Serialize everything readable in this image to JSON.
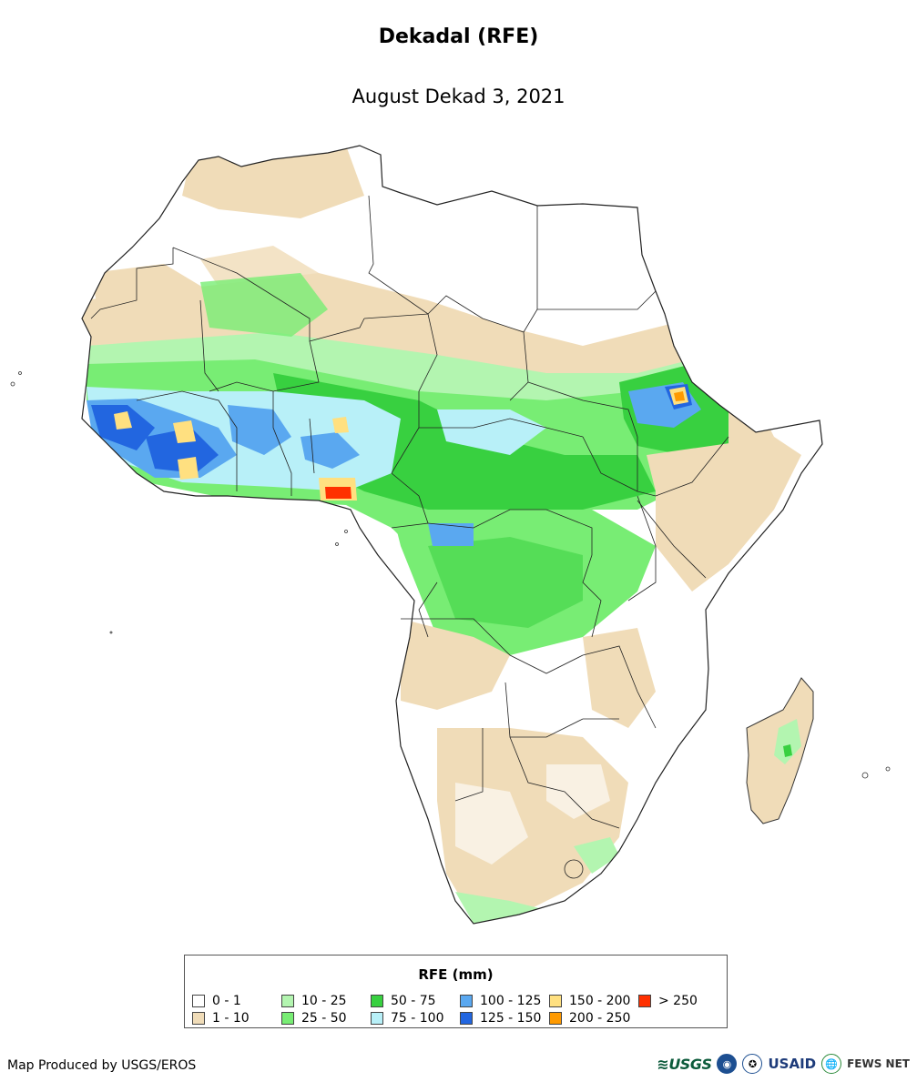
{
  "header": {
    "title": "Dekadal (RFE)",
    "subtitle": "August Dekad 3, 2021"
  },
  "legend": {
    "title": "RFE (mm)",
    "items": [
      {
        "label": "0 - 1",
        "color": "#ffffff"
      },
      {
        "label": "1 - 10",
        "color": "#f0dcb8"
      },
      {
        "label": "10 - 25",
        "color": "#b3f5b0"
      },
      {
        "label": "25 - 50",
        "color": "#78ed74"
      },
      {
        "label": "50 - 75",
        "color": "#38d040"
      },
      {
        "label": "75 - 100",
        "color": "#b8f0f8"
      },
      {
        "label": "100 - 125",
        "color": "#5aa8f0"
      },
      {
        "label": "125 - 150",
        "color": "#2266e0"
      },
      {
        "label": "150 - 200",
        "color": "#ffe080"
      },
      {
        "label": "200 - 250",
        "color": "#ff9a00"
      },
      {
        "label": "> 250",
        "color": "#ff3000"
      }
    ]
  },
  "footer": {
    "credit": "Map Produced by USGS/EROS",
    "logos": [
      {
        "name": "usgs-logo",
        "text": "≋USGS"
      },
      {
        "name": "noaa-logo",
        "text": "◉"
      },
      {
        "name": "usaid-seal",
        "text": "✪"
      },
      {
        "name": "usaid-logo",
        "text": "USAID"
      },
      {
        "name": "globe-icon",
        "text": "🌐"
      },
      {
        "name": "fews-net-logo",
        "text": "FEWS NET"
      }
    ]
  }
}
